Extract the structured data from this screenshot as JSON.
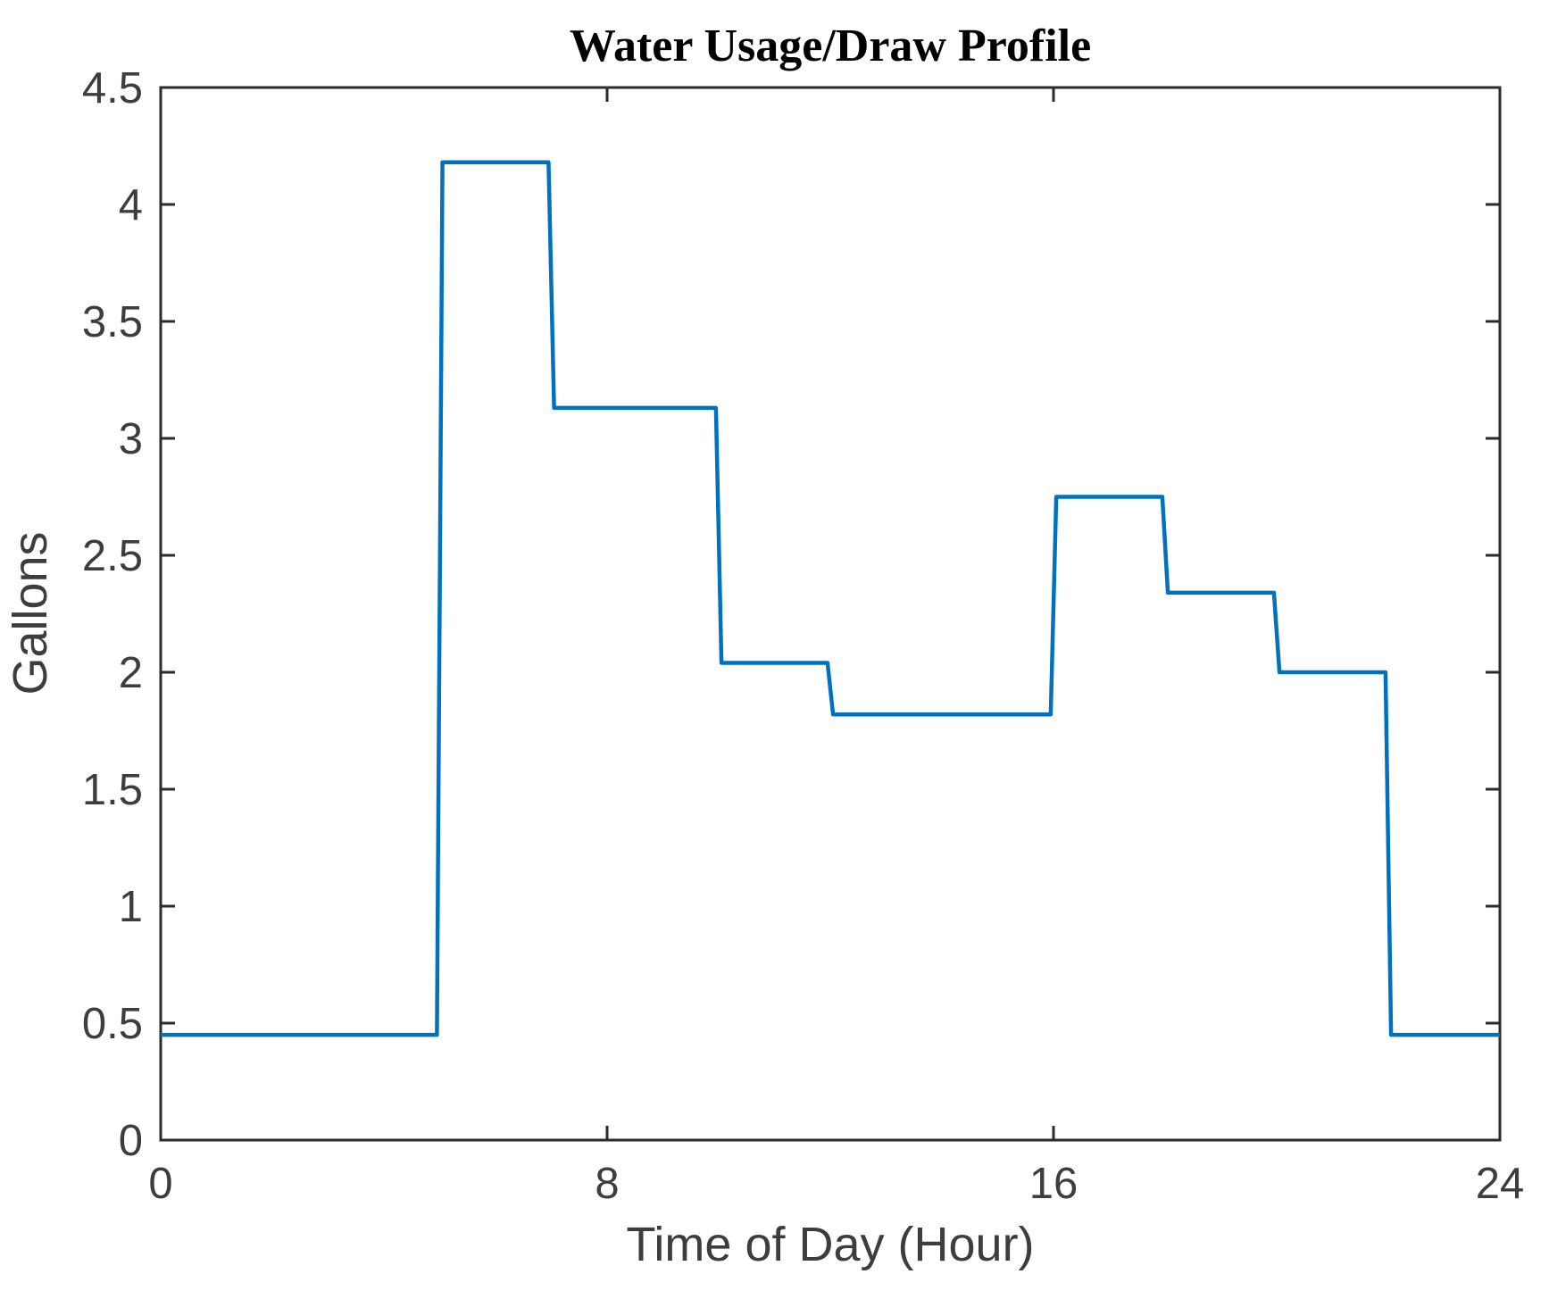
{
  "figure": {
    "title": "Water Usage/Draw Profile",
    "xlabel": "Time of Day (Hour)",
    "ylabel": "Gallons"
  },
  "chart_data": {
    "type": "line",
    "subtype": "step",
    "title": "Water Usage/Draw Profile",
    "xlabel": "Time of Day (Hour)",
    "ylabel": "Gallons",
    "xlim": [
      0,
      24
    ],
    "ylim": [
      0,
      4.5
    ],
    "x_ticks": [
      0,
      8,
      16,
      24
    ],
    "y_ticks": [
      0,
      0.5,
      1,
      1.5,
      2,
      2.5,
      3,
      3.5,
      4,
      4.5
    ],
    "grid": false,
    "legend": false,
    "line_color": "#0072BD",
    "axis_color": "#2b2b2b",
    "text_color": "#3d3d3d",
    "segments": [
      {
        "start_hour": 0,
        "end_hour": 5,
        "gallons": 0.45
      },
      {
        "start_hour": 5,
        "end_hour": 7,
        "gallons": 4.18
      },
      {
        "start_hour": 7,
        "end_hour": 10,
        "gallons": 3.13
      },
      {
        "start_hour": 10,
        "end_hour": 12,
        "gallons": 2.04
      },
      {
        "start_hour": 12,
        "end_hour": 16,
        "gallons": 1.82
      },
      {
        "start_hour": 16,
        "end_hour": 18,
        "gallons": 2.75
      },
      {
        "start_hour": 18,
        "end_hour": 20,
        "gallons": 2.34
      },
      {
        "start_hour": 20,
        "end_hour": 22,
        "gallons": 2.0
      },
      {
        "start_hour": 22,
        "end_hour": 24,
        "gallons": 0.45
      }
    ]
  }
}
